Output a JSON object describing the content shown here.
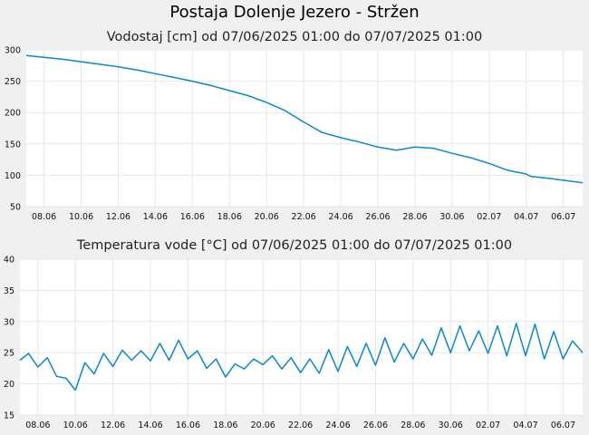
{
  "page_title": "Postaja Dolenje Jezero - Stržen",
  "chart_data": [
    {
      "type": "line",
      "title": "Vodostaj [cm] od 07/06/2025 01:00 do 07/07/2025 01:00",
      "xlabel": "",
      "ylabel": "",
      "ylim": [
        50,
        300
      ],
      "yticks": [
        50,
        100,
        150,
        200,
        250,
        300
      ],
      "xlim": [
        "2025-06-07 01:00",
        "2025-07-07 01:00"
      ],
      "xticks": [
        "08.06",
        "10.06",
        "12.06",
        "14.06",
        "16.06",
        "18.06",
        "20.06",
        "22.06",
        "24.06",
        "26.06",
        "28.06",
        "30.06",
        "02.07",
        "04.07",
        "06.07"
      ],
      "grid": true,
      "color": "#0a87d6",
      "series": [
        {
          "x": [
            "2025-06-07 01:00",
            "2025-06-08 00:00",
            "2025-06-09 00:00",
            "2025-06-10 00:00",
            "2025-06-11 00:00",
            "2025-06-12 00:00",
            "2025-06-13 00:00",
            "2025-06-14 00:00",
            "2025-06-15 00:00",
            "2025-06-16 00:00",
            "2025-06-17 00:00",
            "2025-06-18 00:00",
            "2025-06-19 00:00",
            "2025-06-20 00:00",
            "2025-06-21 00:00",
            "2025-06-22 00:00",
            "2025-06-23 00:00",
            "2025-06-24 00:00",
            "2025-06-25 00:00",
            "2025-06-26 00:00",
            "2025-06-27 00:00",
            "2025-06-28 00:00",
            "2025-06-29 00:00",
            "2025-06-30 00:00",
            "2025-07-01 00:00",
            "2025-07-02 00:00",
            "2025-07-03 00:00",
            "2025-07-04 00:00",
            "2025-07-04 06:00",
            "2025-07-05 00:00",
            "2025-07-06 00:00",
            "2025-07-07 01:00"
          ],
          "values": [
            291,
            288,
            285,
            281,
            277,
            273,
            268,
            262,
            256,
            250,
            243,
            235,
            227,
            216,
            203,
            185,
            168,
            160,
            153,
            145,
            140,
            145,
            143,
            135,
            128,
            119,
            108,
            102,
            98,
            96,
            92,
            88
          ]
        }
      ]
    },
    {
      "type": "line",
      "title": "Temperatura vode [°C] od 07/06/2025 01:00 do 07/07/2025 01:00",
      "xlabel": "",
      "ylabel": "",
      "ylim": [
        15,
        40
      ],
      "yticks": [
        15,
        20,
        25,
        30,
        35,
        40
      ],
      "xlim": [
        "2025-06-07 01:00",
        "2025-07-07 01:00"
      ],
      "xticks": [
        "08.06",
        "10.06",
        "12.06",
        "14.06",
        "16.06",
        "18.06",
        "20.06",
        "22.06",
        "24.06",
        "26.06",
        "28.06",
        "30.06",
        "02.07",
        "04.07",
        "06.07"
      ],
      "grid": true,
      "color": "#0a87d6",
      "series": [
        {
          "x": [
            "2025-06-07 01:00",
            "2025-06-07 12:00",
            "2025-06-08 00:00",
            "2025-06-08 12:00",
            "2025-06-09 00:00",
            "2025-06-09 12:00",
            "2025-06-10 00:00",
            "2025-06-10 12:00",
            "2025-06-11 00:00",
            "2025-06-11 12:00",
            "2025-06-12 00:00",
            "2025-06-12 12:00",
            "2025-06-13 00:00",
            "2025-06-13 12:00",
            "2025-06-14 00:00",
            "2025-06-14 12:00",
            "2025-06-15 00:00",
            "2025-06-15 12:00",
            "2025-06-16 00:00",
            "2025-06-16 12:00",
            "2025-06-17 00:00",
            "2025-06-17 12:00",
            "2025-06-18 00:00",
            "2025-06-18 12:00",
            "2025-06-19 00:00",
            "2025-06-19 12:00",
            "2025-06-20 00:00",
            "2025-06-20 12:00",
            "2025-06-21 00:00",
            "2025-06-21 12:00",
            "2025-06-22 00:00",
            "2025-06-22 12:00",
            "2025-06-23 00:00",
            "2025-06-23 12:00",
            "2025-06-24 00:00",
            "2025-06-24 12:00",
            "2025-06-25 00:00",
            "2025-06-25 12:00",
            "2025-06-26 00:00",
            "2025-06-26 12:00",
            "2025-06-27 00:00",
            "2025-06-27 12:00",
            "2025-06-28 00:00",
            "2025-06-28 12:00",
            "2025-06-29 00:00",
            "2025-06-29 12:00",
            "2025-06-30 00:00",
            "2025-06-30 12:00",
            "2025-07-01 00:00",
            "2025-07-01 12:00",
            "2025-07-02 00:00",
            "2025-07-02 12:00",
            "2025-07-03 00:00",
            "2025-07-03 12:00",
            "2025-07-04 00:00",
            "2025-07-04 12:00",
            "2025-07-05 00:00",
            "2025-07-05 12:00",
            "2025-07-06 00:00",
            "2025-07-06 12:00",
            "2025-07-07 01:00"
          ],
          "values": [
            23.8,
            24.9,
            22.7,
            24.2,
            21.2,
            20.9,
            19.0,
            23.4,
            21.6,
            24.9,
            22.8,
            25.4,
            23.8,
            25.3,
            23.7,
            26.5,
            23.8,
            27.0,
            24.0,
            25.3,
            22.5,
            24.0,
            21.1,
            23.2,
            22.4,
            24.0,
            23.1,
            24.5,
            22.4,
            24.2,
            21.8,
            24.0,
            21.7,
            25.5,
            22.0,
            26.0,
            22.8,
            26.5,
            23.0,
            27.4,
            23.5,
            26.5,
            24.0,
            27.2,
            24.6,
            29.0,
            25.0,
            29.3,
            25.3,
            28.5,
            24.9,
            29.3,
            24.5,
            29.7,
            24.5,
            29.6,
            24.0,
            28.4,
            24.0,
            26.9,
            25.0
          ]
        }
      ]
    }
  ]
}
